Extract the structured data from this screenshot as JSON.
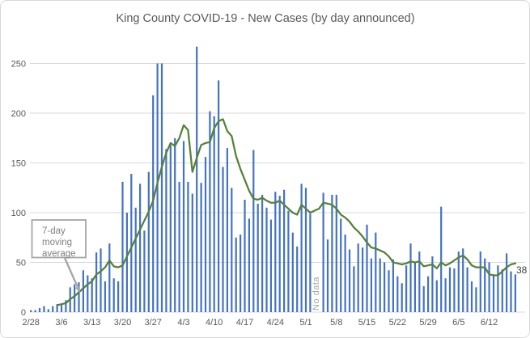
{
  "chart_data": {
    "type": "bar",
    "title": "King County COVID-19 - New Cases (by day announced)",
    "xlabel": "",
    "ylabel": "",
    "y_ticks": [
      0,
      50,
      100,
      150,
      200,
      250
    ],
    "ylim": [
      0,
      270
    ],
    "grid": "horizontal",
    "legend_position": "none",
    "x_tick_labels": [
      "2/28",
      "3/6",
      "3/13",
      "3/20",
      "3/27",
      "4/3",
      "4/10",
      "4/17",
      "4/24",
      "5/1",
      "5/8",
      "5/15",
      "5/22",
      "5/29",
      "6/5",
      "6/12"
    ],
    "categories": [
      "2/28",
      "2/29",
      "3/1",
      "3/2",
      "3/3",
      "3/4",
      "3/5",
      "3/6",
      "3/7",
      "3/8",
      "3/9",
      "3/10",
      "3/11",
      "3/12",
      "3/13",
      "3/14",
      "3/15",
      "3/16",
      "3/17",
      "3/18",
      "3/19",
      "3/20",
      "3/21",
      "3/22",
      "3/23",
      "3/24",
      "3/25",
      "3/26",
      "3/27",
      "3/28",
      "3/29",
      "3/30",
      "3/31",
      "4/1",
      "4/2",
      "4/3",
      "4/4",
      "4/5",
      "4/6",
      "4/7",
      "4/8",
      "4/9",
      "4/10",
      "4/11",
      "4/12",
      "4/13",
      "4/14",
      "4/15",
      "4/16",
      "4/17",
      "4/18",
      "4/19",
      "4/20",
      "4/21",
      "4/22",
      "4/23",
      "4/24",
      "4/25",
      "4/26",
      "4/27",
      "4/28",
      "4/29",
      "4/30",
      "5/1",
      "5/2",
      "5/3",
      "5/4",
      "5/5",
      "5/6",
      "5/7",
      "5/8",
      "5/9",
      "5/10",
      "5/11",
      "5/12",
      "5/13",
      "5/14",
      "5/15",
      "5/16",
      "5/17",
      "5/18",
      "5/19",
      "5/20",
      "5/21",
      "5/22",
      "5/23",
      "5/24",
      "5/25",
      "5/26",
      "5/27",
      "5/28",
      "5/29",
      "5/30",
      "5/31",
      "6/1",
      "6/2",
      "6/3",
      "6/4",
      "6/5",
      "6/6",
      "6/7",
      "6/8",
      "6/9",
      "6/10",
      "6/11",
      "6/12",
      "6/13",
      "6/14",
      "6/15",
      "6/16",
      "6/17",
      "6/18"
    ],
    "series": [
      {
        "name": "New cases (by day announced)",
        "type": "bar",
        "color": "#4472C4",
        "values": [
          2,
          2,
          4,
          6,
          3,
          6,
          8,
          8,
          12,
          25,
          28,
          30,
          42,
          37,
          34,
          60,
          64,
          31,
          69,
          34,
          31,
          131,
          100,
          139,
          105,
          129,
          82,
          141,
          218,
          250,
          250,
          164,
          168,
          175,
          131,
          172,
          131,
          119,
          267,
          130,
          156,
          202,
          197,
          233,
          146,
          165,
          125,
          75,
          78,
          113,
          94,
          163,
          109,
          118,
          105,
          93,
          121,
          117,
          123,
          102,
          80,
          66,
          129,
          125,
          99,
          null,
          null,
          120,
          73,
          118,
          118,
          94,
          78,
          63,
          46,
          69,
          65,
          88,
          54,
          80,
          54,
          50,
          42,
          53,
          36,
          29,
          47,
          69,
          50,
          61,
          26,
          36,
          56,
          32,
          106,
          34,
          45,
          44,
          61,
          64,
          45,
          31,
          25,
          61,
          54,
          50,
          38,
          47,
          43,
          59,
          41,
          38
        ]
      },
      {
        "name": "7-day moving average",
        "type": "line",
        "color": "#548235",
        "values": [
          null,
          null,
          null,
          null,
          null,
          null,
          7,
          8,
          9,
          13,
          16,
          20,
          24,
          28,
          31,
          38,
          41,
          45,
          52,
          46,
          45,
          47,
          56,
          65,
          74,
          83,
          92,
          101,
          112,
          130,
          146,
          160,
          170,
          167,
          175,
          188,
          183,
          141,
          155,
          168,
          170,
          171,
          185,
          192,
          194,
          182,
          177,
          157,
          144,
          133,
          122,
          114,
          113,
          115,
          112,
          110,
          110,
          112,
          108,
          104,
          100,
          98,
          108,
          104,
          100,
          102,
          104,
          110,
          109,
          108,
          104,
          98,
          95,
          91,
          85,
          81,
          76,
          70,
          65,
          64,
          62,
          60,
          56,
          50,
          49,
          48,
          49,
          51,
          50,
          51,
          46,
          47,
          48,
          44,
          50,
          47,
          49,
          52,
          55,
          57,
          53,
          47,
          45,
          45,
          45,
          38,
          37,
          37,
          41,
          45,
          48,
          49
        ]
      }
    ],
    "annotations": {
      "callout_text": "7-day moving average",
      "callout_lines": [
        "7-day",
        "moving",
        "average"
      ],
      "no_data_label": "No data",
      "end_value_label": "38"
    }
  },
  "colors": {
    "background": "#FFFFFF",
    "frame_border": "#D9D9D9",
    "gridline": "#D9D9D9",
    "title_text": "#595959",
    "axis_text": "#595959",
    "bar": "#4472C4",
    "line": "#548235",
    "annotation_text": "#808080",
    "annotation_border": "#A6A6A6",
    "arrow": "#A6A6A6",
    "end_label_text": "#404040"
  }
}
